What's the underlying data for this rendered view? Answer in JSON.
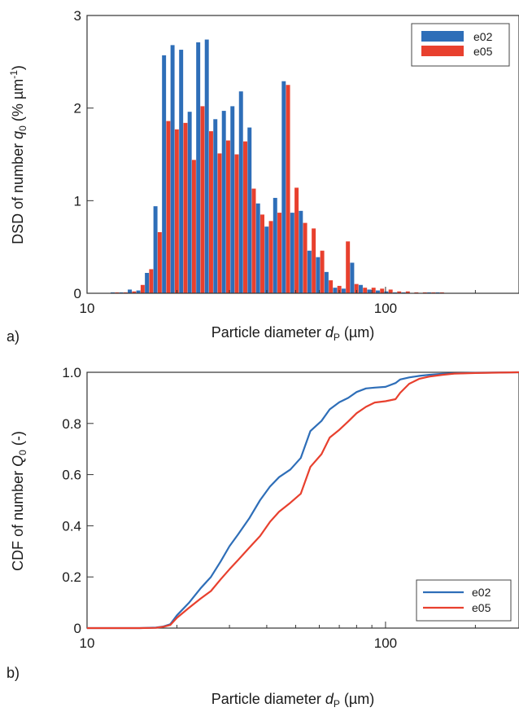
{
  "chart_data": [
    {
      "panel_label": "a)",
      "type": "bar",
      "xscale": "log",
      "xlim": [
        10,
        280
      ],
      "ylim": [
        0,
        3
      ],
      "xticks": [
        {
          "v": 10,
          "label": "10"
        },
        {
          "v": 100,
          "label": "100"
        }
      ],
      "yticks": [
        {
          "v": 0,
          "label": "0"
        },
        {
          "v": 1,
          "label": "1"
        },
        {
          "v": 2,
          "label": "2"
        },
        {
          "v": 3,
          "label": "3"
        }
      ],
      "xlabel": {
        "pre": "Particle diameter ",
        "var": "d",
        "sub": "P",
        "post": " (µm)"
      },
      "ylabel": {
        "pre": "DSD of number ",
        "var": "q",
        "sub": "0",
        "post": " (% µm",
        "sup": "-1",
        "end": ")"
      },
      "legend": {
        "position": "top-right",
        "frame": true
      },
      "bin_ratio": 1.0682,
      "bins": [
        12.4,
        13.25,
        14.15,
        15.12,
        16.15,
        17.25,
        18.43,
        19.68,
        21.03,
        22.46,
        23.99,
        25.63,
        27.38,
        29.24,
        31.24,
        33.37,
        35.64,
        38.07,
        40.67,
        43.44,
        46.41,
        49.57,
        52.95,
        56.57,
        60.42,
        64.54,
        68.95,
        73.65,
        78.67,
        84.04,
        89.77,
        95.89,
        102.4,
        109.4,
        116.9,
        124.9,
        133.4,
        142.5,
        152.2,
        162.6,
        173.7,
        185.5,
        198.2,
        211.7,
        226.1
      ],
      "series": [
        {
          "name": "e02",
          "color": "#2e6eb8",
          "values": [
            0.01,
            0.01,
            0.04,
            0.03,
            0.22,
            0.94,
            2.57,
            2.68,
            2.63,
            1.96,
            2.71,
            2.74,
            1.88,
            1.97,
            2.02,
            2.18,
            1.79,
            0.97,
            0.72,
            1.03,
            2.29,
            0.87,
            0.89,
            0.46,
            0.39,
            0.23,
            0.06,
            0.05,
            0.33,
            0.09,
            0.04,
            0.03,
            0.02,
            0.01,
            0.01,
            0.0,
            0.0,
            0.01,
            0.01,
            0.0,
            0.0,
            0.0,
            0.0,
            0.0,
            0.0
          ]
        },
        {
          "name": "e05",
          "color": "#e8402e",
          "values": [
            0.01,
            0.01,
            0.02,
            0.09,
            0.26,
            0.66,
            1.86,
            1.77,
            1.84,
            1.44,
            2.02,
            1.75,
            1.51,
            1.65,
            1.5,
            1.64,
            1.13,
            0.85,
            0.78,
            0.87,
            2.25,
            1.14,
            0.76,
            0.7,
            0.46,
            0.14,
            0.08,
            0.56,
            0.1,
            0.06,
            0.06,
            0.05,
            0.04,
            0.02,
            0.02,
            0.01,
            0.01,
            0.01,
            0.01,
            0.0,
            0.0,
            0.0,
            0.0,
            0.0,
            0.0
          ]
        }
      ]
    },
    {
      "panel_label": "b)",
      "type": "line",
      "xscale": "log",
      "xlim": [
        10,
        280
      ],
      "ylim": [
        0,
        1
      ],
      "xticks": [
        {
          "v": 10,
          "label": "10"
        },
        {
          "v": 100,
          "label": "100"
        }
      ],
      "yticks": [
        {
          "v": 0,
          "label": "0"
        },
        {
          "v": 0.2,
          "label": "0.2"
        },
        {
          "v": 0.4,
          "label": "0.4"
        },
        {
          "v": 0.6,
          "label": "0.6"
        },
        {
          "v": 0.8,
          "label": "0.8"
        },
        {
          "v": 1,
          "label": "1.0"
        }
      ],
      "xlabel": {
        "pre": "Particle diameter ",
        "var": "d",
        "sub": "P",
        "post": " (µm)"
      },
      "ylabel": {
        "pre": "CDF of number ",
        "var": "Q",
        "sub": "0",
        "post": " (-)"
      },
      "legend": {
        "position": "bottom-right",
        "frame": true
      },
      "series": [
        {
          "name": "e02",
          "color": "#2e6eb8",
          "x": [
            10,
            15,
            17,
            18,
            19,
            20,
            22,
            24,
            26,
            28,
            30,
            32,
            35,
            38,
            41,
            44,
            48,
            52,
            56,
            61,
            65,
            70,
            75,
            80,
            86,
            92,
            100,
            108,
            112,
            120,
            130,
            140,
            155,
            170,
            200,
            280
          ],
          "y": [
            0,
            0,
            0.002,
            0.006,
            0.015,
            0.05,
            0.1,
            0.155,
            0.2,
            0.26,
            0.32,
            0.365,
            0.43,
            0.5,
            0.553,
            0.59,
            0.62,
            0.665,
            0.77,
            0.81,
            0.855,
            0.883,
            0.9,
            0.923,
            0.937,
            0.94,
            0.943,
            0.958,
            0.972,
            0.98,
            0.986,
            0.99,
            0.994,
            0.996,
            0.998,
            1.0
          ]
        },
        {
          "name": "e05",
          "color": "#e8402e",
          "x": [
            10,
            15,
            17,
            18,
            19,
            20,
            22,
            24,
            26,
            28,
            30,
            32,
            35,
            38,
            41,
            44,
            48,
            52,
            56,
            61,
            65,
            70,
            75,
            80,
            86,
            92,
            100,
            108,
            112,
            120,
            130,
            140,
            155,
            170,
            200,
            280
          ],
          "y": [
            0,
            0,
            0.001,
            0.005,
            0.012,
            0.04,
            0.08,
            0.115,
            0.145,
            0.19,
            0.23,
            0.265,
            0.315,
            0.36,
            0.415,
            0.455,
            0.49,
            0.525,
            0.63,
            0.68,
            0.745,
            0.775,
            0.808,
            0.84,
            0.865,
            0.882,
            0.887,
            0.895,
            0.92,
            0.955,
            0.975,
            0.983,
            0.99,
            0.995,
            0.997,
            1.0
          ]
        }
      ]
    }
  ]
}
